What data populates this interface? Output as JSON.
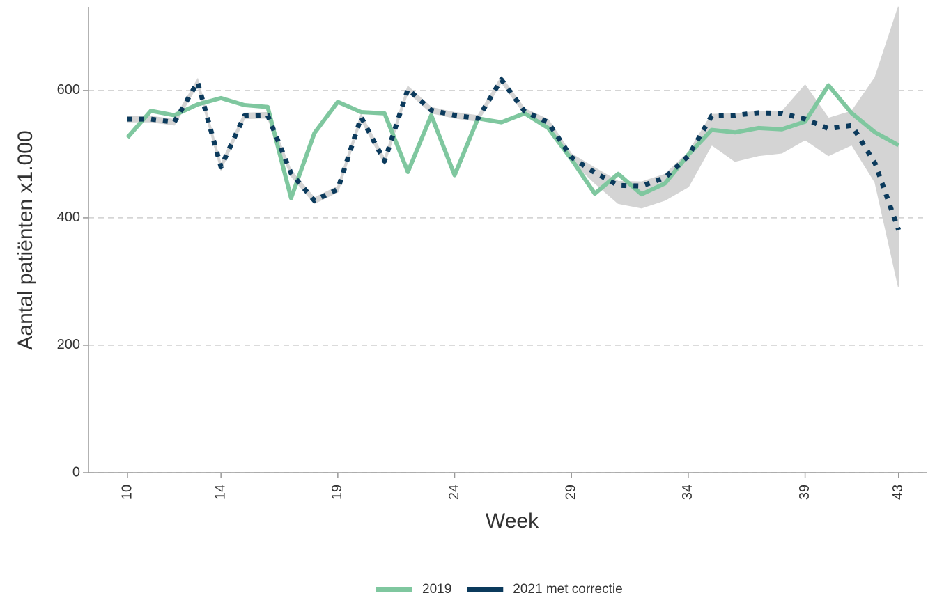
{
  "chart_data": {
    "type": "line",
    "x_label": "Week",
    "y_label": "Aantal patiënten x1.000",
    "x": [
      10,
      11,
      12,
      13,
      14,
      15,
      16,
      17,
      18,
      19,
      20,
      21,
      22,
      23,
      24,
      25,
      26,
      27,
      28,
      29,
      30,
      31,
      32,
      33,
      34,
      35,
      36,
      37,
      38,
      39,
      40,
      41,
      42,
      43
    ],
    "series": [
      {
        "name": "2019",
        "color": "#7fc79f",
        "style": "solid",
        "values": [
          526,
          568,
          561,
          578,
          588,
          577,
          574,
          431,
          533,
          582,
          566,
          564,
          472,
          561,
          467,
          556,
          550,
          564,
          541,
          492,
          438,
          469,
          437,
          454,
          499,
          538,
          534,
          541,
          539,
          551,
          608,
          564,
          534,
          514
        ]
      },
      {
        "name": "2021 met correctie",
        "color": "#0b3a5c",
        "style": "dotted",
        "values": [
          555,
          555,
          550,
          613,
          480,
          560,
          561,
          470,
          427,
          445,
          558,
          489,
          602,
          569,
          561,
          556,
          617,
          567,
          550,
          495,
          471,
          451,
          450,
          463,
          497,
          560,
          561,
          565,
          564,
          555,
          540,
          545,
          485,
          381
        ]
      }
    ],
    "band": {
      "color": "#d4d4d4",
      "lower": [
        551,
        551,
        546,
        609,
        476,
        556,
        557,
        466,
        423,
        441,
        554,
        485,
        598,
        565,
        557,
        552,
        613,
        563,
        546,
        490,
        455,
        423,
        416,
        428,
        449,
        515,
        489,
        498,
        502,
        523,
        498,
        515,
        456,
        292
      ],
      "upper": [
        559,
        559,
        554,
        617,
        484,
        564,
        565,
        474,
        431,
        449,
        562,
        493,
        606,
        573,
        565,
        560,
        621,
        571,
        554,
        500,
        478,
        457,
        456,
        468,
        502,
        562,
        563,
        567,
        566,
        608,
        556,
        567,
        620,
        731
      ]
    },
    "xlim": [
      8.33,
      44.2
    ],
    "ylim": [
      0,
      731
    ],
    "xticks": [
      10,
      14,
      19,
      24,
      29,
      34,
      39,
      43
    ],
    "yticks": [
      0,
      200,
      400,
      600
    ],
    "grid": true,
    "legend": "bottom"
  }
}
